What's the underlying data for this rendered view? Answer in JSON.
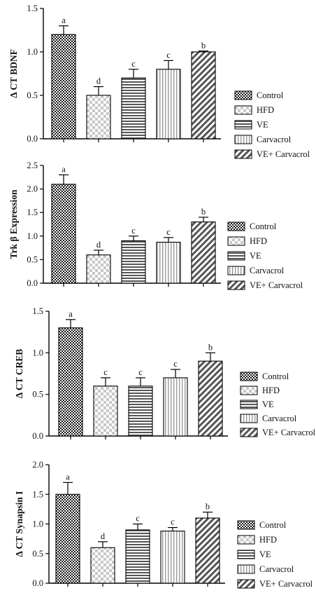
{
  "chart_data": [
    {
      "type": "bar",
      "ylabel": "Δ CT BDNF",
      "ylim": [
        0,
        1.5
      ],
      "yticks": [
        "0.0",
        "0.5",
        "1.0",
        "1.5"
      ],
      "categories": [
        "Control",
        "HFD",
        "VE",
        "Carvacrol",
        "VE+ Carvacrol"
      ],
      "values": [
        1.2,
        0.5,
        0.7,
        0.8,
        1.0
      ],
      "errors": [
        0.1,
        0.1,
        0.1,
        0.1,
        0.01
      ],
      "letters": [
        "a",
        "d",
        "c",
        "c",
        "b"
      ],
      "legend": [
        "Control",
        "HFD",
        "VE",
        "Carvacrol",
        "VE+ Carvacrol"
      ],
      "grid": false,
      "legend_position": "right"
    },
    {
      "type": "bar",
      "ylabel": "Trk β Expression",
      "ylim": [
        0,
        2.5
      ],
      "yticks": [
        "0.0",
        "0.5",
        "1.0",
        "1.5",
        "2.0",
        "2.5"
      ],
      "categories": [
        "Control",
        "HFD",
        "VE",
        "Carvacrol",
        "VE+ Carvacrol"
      ],
      "values": [
        2.1,
        0.6,
        0.9,
        0.87,
        1.3
      ],
      "errors": [
        0.2,
        0.1,
        0.1,
        0.1,
        0.1
      ],
      "letters": [
        "a",
        "d",
        "c",
        "c",
        "b"
      ],
      "legend": [
        "Control",
        "HFD",
        "VE",
        "Carvacrol",
        "VE+ Carvacrol"
      ],
      "grid": false,
      "legend_position": "right"
    },
    {
      "type": "bar",
      "ylabel": "Δ CT CREB",
      "ylim": [
        0,
        1.5
      ],
      "yticks": [
        "0.0",
        "0.5",
        "1.0",
        "1.5"
      ],
      "categories": [
        "Control",
        "HFD",
        "VE",
        "Carvacrol",
        "VE+ Carvacrol"
      ],
      "values": [
        1.3,
        0.6,
        0.6,
        0.7,
        0.9
      ],
      "errors": [
        0.1,
        0.1,
        0.1,
        0.1,
        0.1
      ],
      "letters": [
        "a",
        "c",
        "c",
        "c",
        "b"
      ],
      "legend": [
        "Control",
        "HFD",
        "VE",
        "Carvacrol",
        "VE+ Carvacrol"
      ],
      "grid": false,
      "legend_position": "right"
    },
    {
      "type": "bar",
      "ylabel": "Δ CT Synapsin I",
      "ylim": [
        0,
        2.0
      ],
      "yticks": [
        "0.0",
        "0.5",
        "1.0",
        "1.5",
        "2.0"
      ],
      "categories": [
        "Control",
        "HFD",
        "VE",
        "Carvacrol",
        "VE+ Carvacrol"
      ],
      "values": [
        1.5,
        0.6,
        0.9,
        0.88,
        1.1
      ],
      "errors": [
        0.2,
        0.1,
        0.1,
        0.06,
        0.1
      ],
      "letters": [
        "a",
        "d",
        "c",
        "c",
        "b"
      ],
      "legend": [
        "Control",
        "HFD",
        "VE",
        "Carvacrol",
        "VE+ Carvacrol"
      ],
      "grid": false,
      "legend_position": "right"
    }
  ]
}
